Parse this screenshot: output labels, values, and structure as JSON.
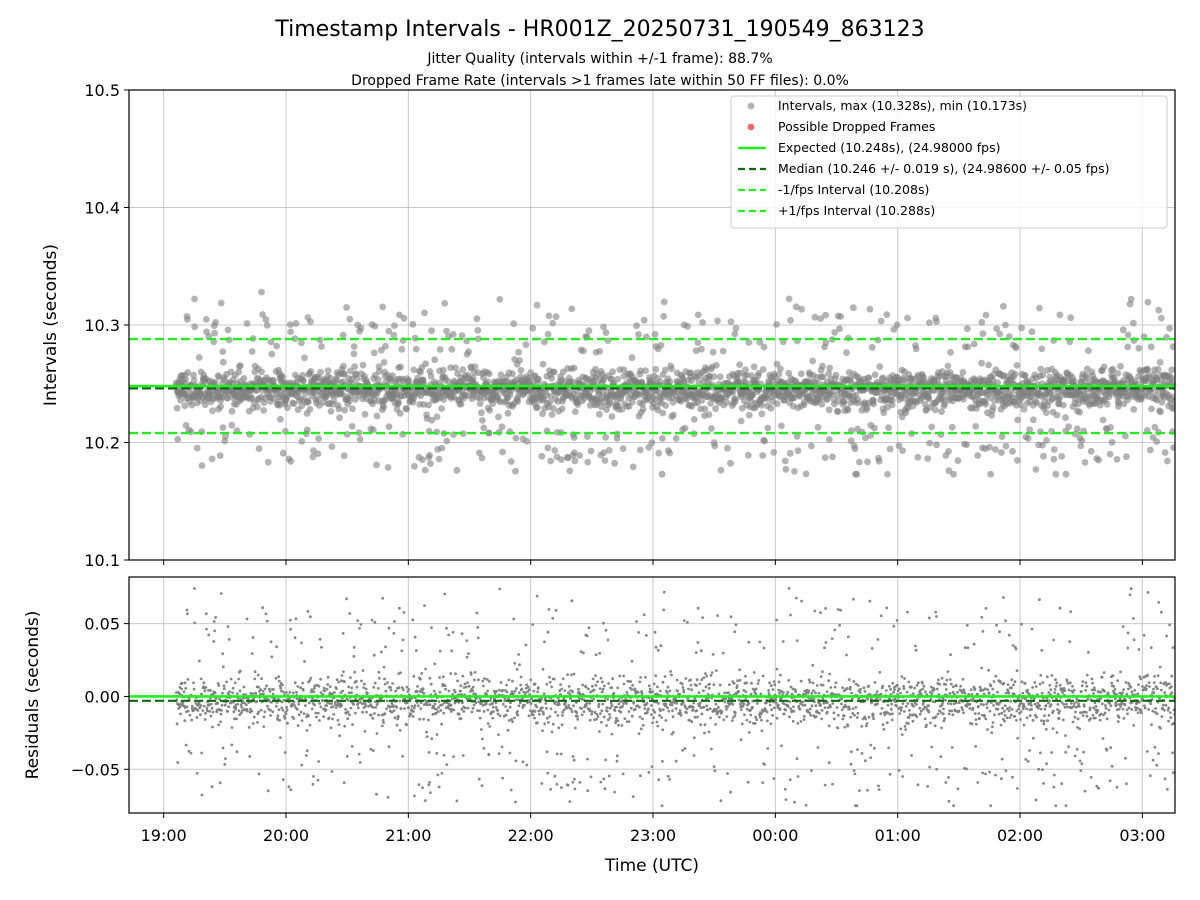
{
  "figure": {
    "title": "Timestamp Intervals - HR001Z_20250731_190549_863123",
    "subtitle_1": "Jitter Quality (intervals within +/-1 frame): 88.7%",
    "subtitle_2": "Dropped Frame Rate (intervals >1 frames late within 50 FF files): 0.0%",
    "xlabel": "Time (UTC)"
  },
  "colors": {
    "points": "#808080",
    "dropped": "#f05050",
    "expected": "#22ee22",
    "median": "#0a6b0a",
    "band": "#22ee22",
    "grid": "#b0b0b0"
  },
  "chart_data": [
    {
      "type": "scatter",
      "panel": "intervals",
      "ylabel": "Intervals (seconds)",
      "ylim": [
        10.1,
        10.5
      ],
      "yticks": [
        "10.1",
        "10.2",
        "10.3",
        "10.4",
        "10.5"
      ],
      "x_range": [
        "18:43",
        "03:16"
      ],
      "xticks": [
        "19:00",
        "20:00",
        "21:00",
        "22:00",
        "23:00",
        "00:00",
        "01:00",
        "02:00",
        "03:00"
      ],
      "grid": true,
      "legend_position": "top-right",
      "series": [
        {
          "name": "Intervals, max (10.328s), min (10.173s)",
          "kind": "points",
          "x_start": "19:06",
          "x_end": "03:16",
          "count": 2870,
          "center": 10.245,
          "max": 10.328,
          "min": 10.173
        },
        {
          "name": "Possible Dropped Frames",
          "kind": "points",
          "count": 0
        },
        {
          "name": "Expected (10.248s), (24.98000 fps)",
          "kind": "hline",
          "y": 10.248
        },
        {
          "name": "Median (10.246 +/- 0.019 s), (24.98600 +/- 0.05 fps)",
          "kind": "hline",
          "y": 10.246
        },
        {
          "name": "-1/fps Interval (10.208s)",
          "kind": "hline",
          "y": 10.208
        },
        {
          "name": "+1/fps Interval (10.288s)",
          "kind": "hline",
          "y": 10.288
        }
      ]
    },
    {
      "type": "scatter",
      "panel": "residuals",
      "ylabel": "Residuals (seconds)",
      "ylim": [
        -0.08,
        0.082
      ],
      "yticks": [
        "−0.05",
        "0.00",
        "0.05"
      ],
      "ytick_values": [
        -0.05,
        0.0,
        0.05
      ],
      "x_range": [
        "18:43",
        "03:16"
      ],
      "xticks": [
        "19:00",
        "20:00",
        "21:00",
        "22:00",
        "23:00",
        "00:00",
        "01:00",
        "02:00",
        "03:00"
      ],
      "grid": true,
      "series": [
        {
          "kind": "points",
          "count": 2870,
          "x_start": "19:06",
          "x_end": "03:16",
          "center": -0.002
        },
        {
          "kind": "hline",
          "y": 0.0,
          "style": "expected"
        },
        {
          "kind": "hline",
          "y": -0.003,
          "style": "median"
        }
      ]
    }
  ]
}
